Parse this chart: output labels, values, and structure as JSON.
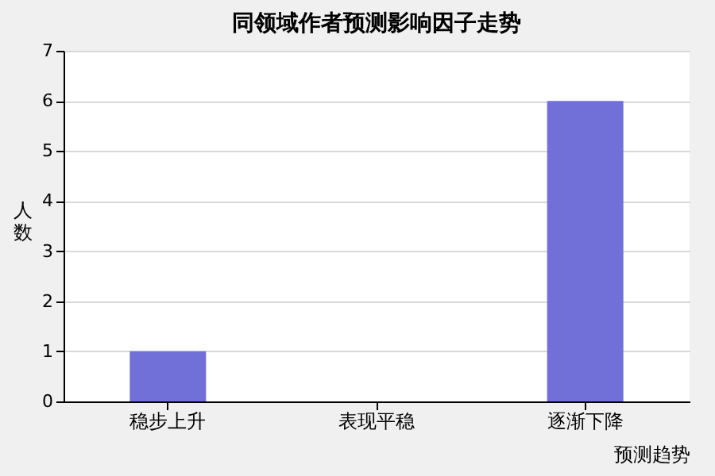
{
  "chart_data": {
    "type": "bar",
    "title": "同领域作者预测影响因子走势",
    "xlabel": "预测趋势",
    "ylabel": "人数",
    "categories": [
      "稳步上升",
      "表现平稳",
      "逐渐下降"
    ],
    "values": [
      1,
      0,
      6
    ],
    "color": "#7070d8",
    "ylim": [
      0,
      7
    ],
    "yticks": [
      0,
      1,
      2,
      3,
      4,
      5,
      6,
      7
    ],
    "grid": "y"
  }
}
